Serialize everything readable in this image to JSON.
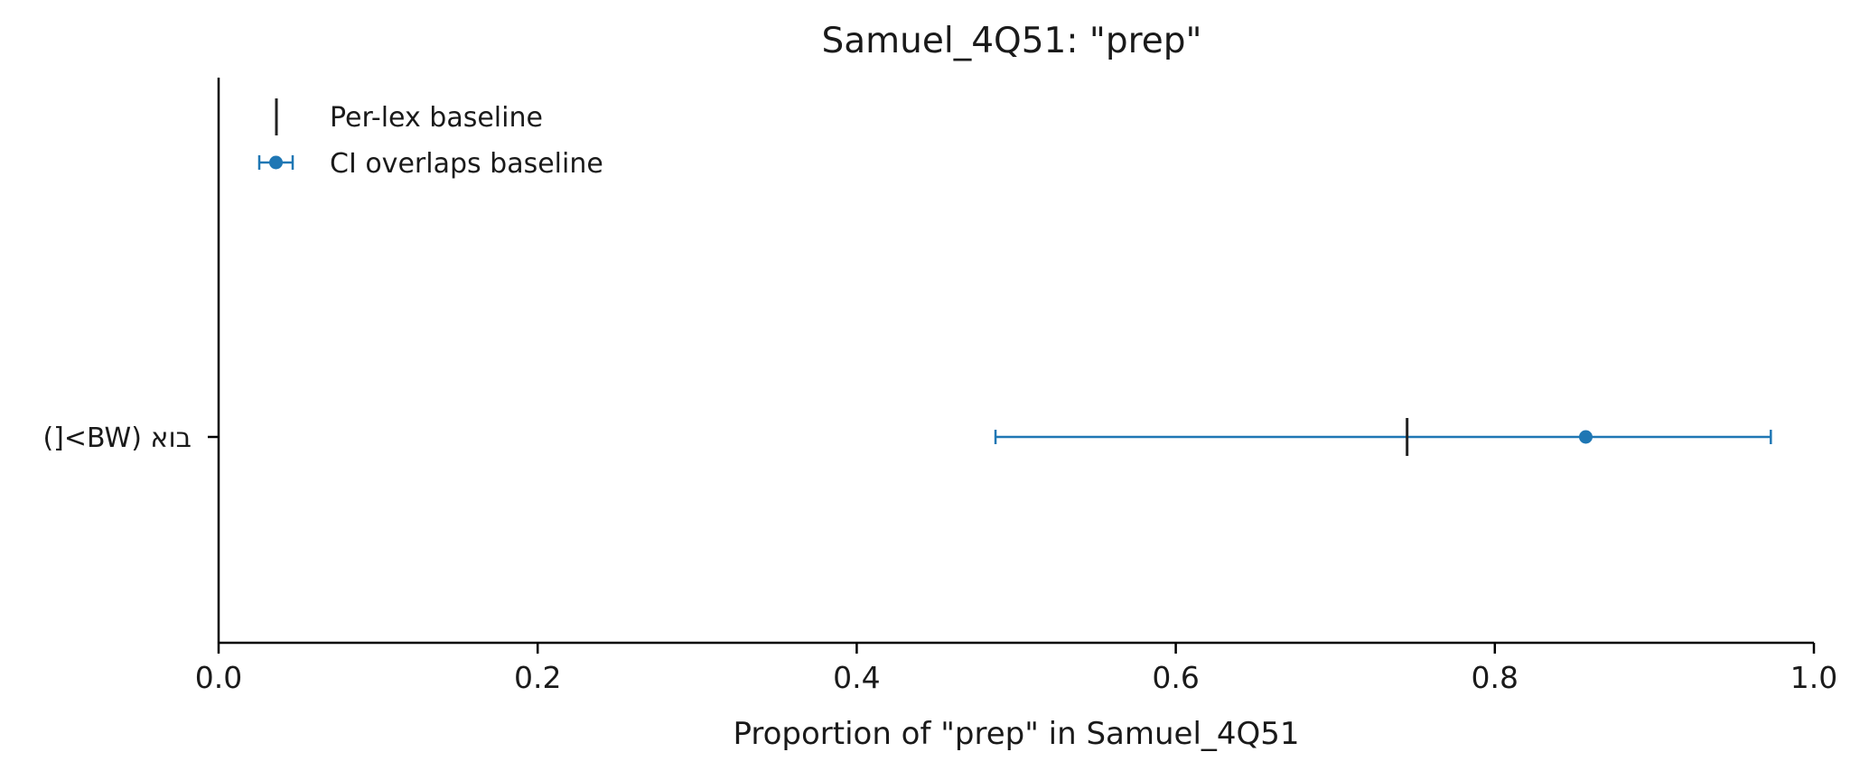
{
  "chart_data": {
    "type": "errorbar",
    "title": "Samuel_4Q51: \"prep\"",
    "xlabel": "Proportion of \"prep\" in Samuel_4Q51",
    "ylabel": "",
    "xlim": [
      0.0,
      1.0
    ],
    "xticks": [
      "0.0",
      "0.2",
      "0.4",
      "0.6",
      "0.8",
      "1.0"
    ],
    "categories": [
      "בוא (BW>[)"
    ],
    "series": [
      {
        "name": "CI overlaps baseline",
        "color": "#1f77b4",
        "points": [
          {
            "category": "בוא (BW>[)",
            "value": 0.857,
            "ci_low": 0.487,
            "ci_high": 0.973
          }
        ]
      }
    ],
    "baseline": {
      "name": "Per-lex baseline",
      "color": "#222222",
      "values": [
        0.745
      ]
    },
    "legend": {
      "position": "top-left",
      "entries": [
        "Per-lex baseline",
        "CI overlaps baseline"
      ]
    },
    "grid": false
  }
}
